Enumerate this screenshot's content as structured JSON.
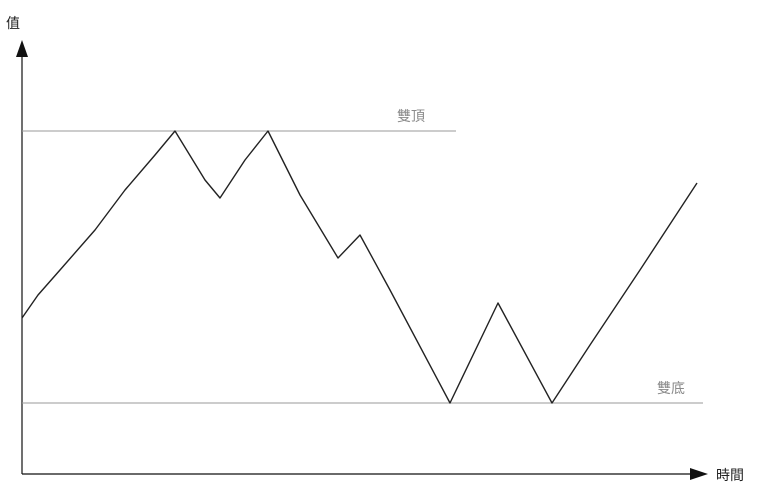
{
  "chart_data": {
    "type": "line",
    "ylabel": "值",
    "xlabel": "時間",
    "grid": false,
    "colors": {
      "line": "#222222",
      "reference": "#9a9a9a",
      "axis": "#111111"
    },
    "reference_lines": [
      {
        "label": "雙頂",
        "y": 131
      },
      {
        "label": "雙底",
        "y": 403
      }
    ],
    "series": [
      {
        "x": [
          22,
          38,
          60,
          95,
          125,
          155,
          175,
          205,
          220,
          245,
          268,
          300,
          338,
          360,
          390,
          450,
          498,
          552,
          590,
          640,
          697
        ],
        "y": [
          318,
          295,
          270,
          230,
          190,
          155,
          131,
          180,
          198,
          160,
          131,
          195,
          258,
          235,
          290,
          403,
          303,
          403,
          345,
          270,
          183
        ]
      }
    ]
  }
}
